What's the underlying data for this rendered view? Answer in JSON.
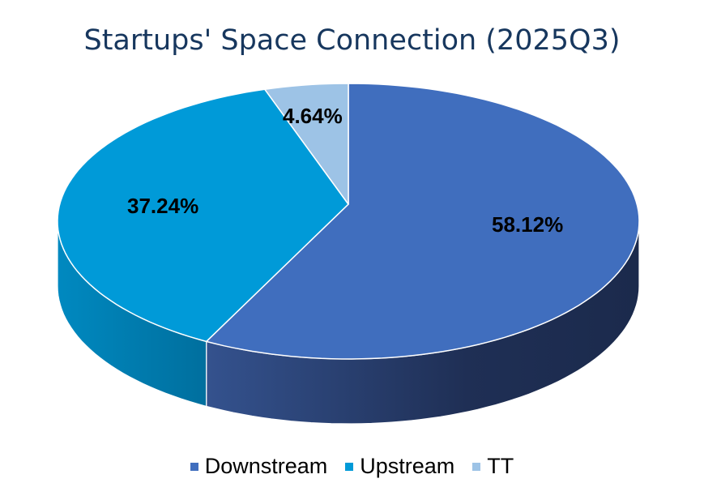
{
  "chart_data": {
    "type": "pie",
    "style": "3d",
    "title": "Startups' Space Connection (2025Q3)",
    "categories": [
      "Downstream",
      "Upstream",
      "TT"
    ],
    "values": [
      58.12,
      37.24,
      4.64
    ],
    "data_labels": [
      "58.12%",
      "37.24%",
      "4.64%"
    ],
    "colors": [
      "#406ebe",
      "#009ad8",
      "#9dc3e6"
    ],
    "side_colors": [
      "#23355f",
      "#0078a8",
      "#7fa3c6"
    ],
    "legend_position": "bottom"
  }
}
